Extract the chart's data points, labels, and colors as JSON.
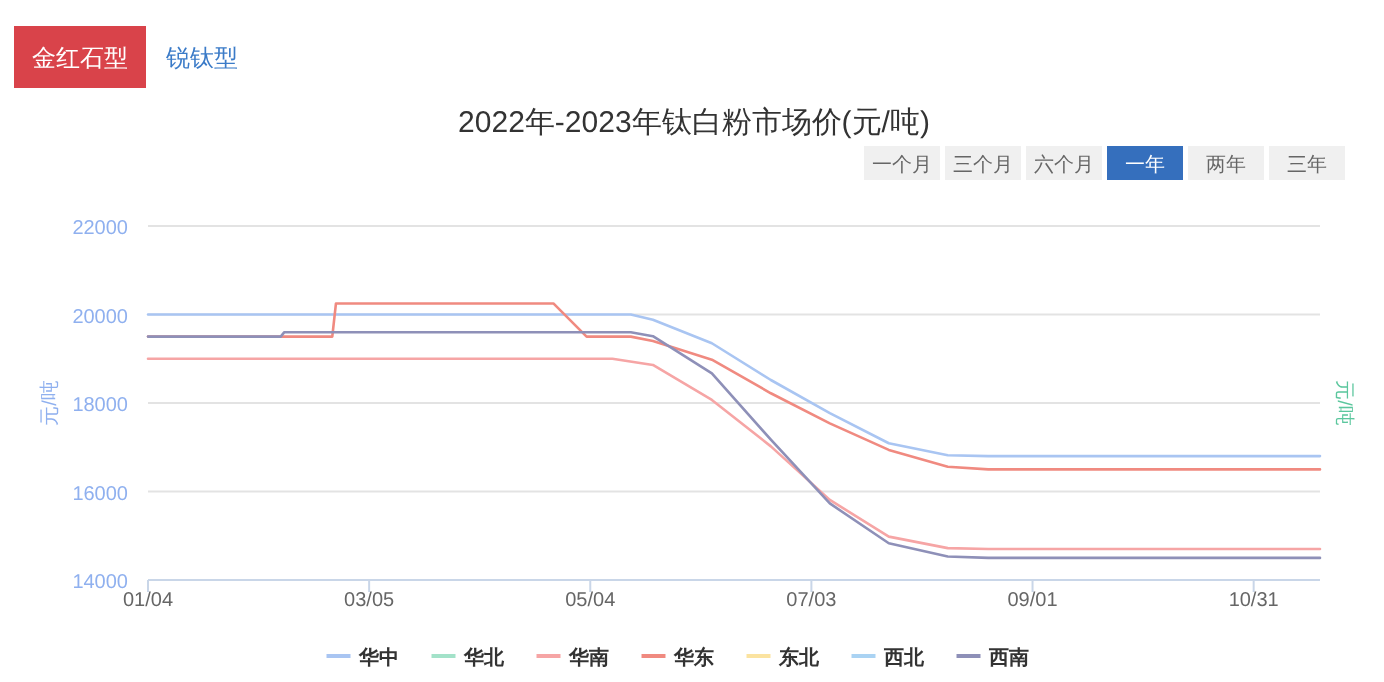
{
  "chart_data": {
    "type": "line",
    "title": "2022年-2023年钛白粉市场价(元/吨)",
    "annotations": [
      "金红石型",
      "锐钛型",
      "一个月",
      "三个月",
      "六个月",
      "一年",
      "两年",
      "三年"
    ],
    "ylabel": "元/吨",
    "y2label": "元/吨",
    "xlim": [
      "2023-01-04",
      "2023-11-18"
    ],
    "xticks": [
      {
        "value": "2023-01-04",
        "label": "01/04"
      },
      {
        "value": "2023-03-05",
        "label": "03/05"
      },
      {
        "value": "2023-05-04",
        "label": "05/04"
      },
      {
        "value": "2023-07-03",
        "label": "07/03"
      },
      {
        "value": "2023-09-01",
        "label": "09/01"
      },
      {
        "value": "2023-10-31",
        "label": "10/31"
      }
    ],
    "ylim": [
      14000,
      22000
    ],
    "yticks": [
      14000,
      16000,
      18000,
      20000,
      22000
    ],
    "grid": "y",
    "legend": "bottom",
    "marker": "none",
    "line_style": "solid",
    "series": [
      {
        "name": "华中",
        "color": "#a9c5f2",
        "x": [
          "2023-01-04",
          "2023-05-15",
          "2023-05-21",
          "2023-06-06",
          "2023-06-22",
          "2023-07-08",
          "2023-07-24",
          "2023-08-09",
          "2023-08-20",
          "2023-11-18"
        ],
        "values": [
          20000,
          20000,
          19880,
          19350,
          18520,
          17770,
          17090,
          16820,
          16800,
          16800
        ]
      },
      {
        "name": "华北",
        "color": "#a3e2c9"
      },
      {
        "name": "华南",
        "color": "#f6a5a5",
        "x": [
          "2023-01-04",
          "2023-05-10",
          "2023-05-21",
          "2023-06-06",
          "2023-06-22",
          "2023-07-08",
          "2023-07-24",
          "2023-08-09",
          "2023-08-20",
          "2023-11-18"
        ],
        "values": [
          19000,
          19000,
          18860,
          18070,
          17020,
          15810,
          14980,
          14720,
          14700,
          14700
        ]
      },
      {
        "name": "华东",
        "color": "#f08a80",
        "x": [
          "2023-01-04",
          "2023-02-23",
          "2023-02-24",
          "2023-04-24",
          "2023-05-03",
          "2023-05-15",
          "2023-05-21",
          "2023-06-06",
          "2023-06-22",
          "2023-07-08",
          "2023-07-24",
          "2023-08-09",
          "2023-08-20",
          "2023-11-18"
        ],
        "values": [
          19500,
          19500,
          20250,
          20250,
          19500,
          19500,
          19400,
          18980,
          18220,
          17540,
          16940,
          16560,
          16500,
          16500
        ]
      },
      {
        "name": "东北",
        "color": "#fbe3a0"
      },
      {
        "name": "西北",
        "color": "#aad3f3"
      },
      {
        "name": "西南",
        "color": "#8e90b8",
        "x": [
          "2023-01-04",
          "2023-02-09",
          "2023-02-10",
          "2023-05-15",
          "2023-05-21",
          "2023-06-06",
          "2023-06-22",
          "2023-07-08",
          "2023-07-24",
          "2023-08-09",
          "2023-08-20",
          "2023-11-18"
        ],
        "values": [
          19500,
          19500,
          19600,
          19600,
          19510,
          18670,
          17170,
          15730,
          14830,
          14530,
          14500,
          14500
        ]
      }
    ]
  }
}
